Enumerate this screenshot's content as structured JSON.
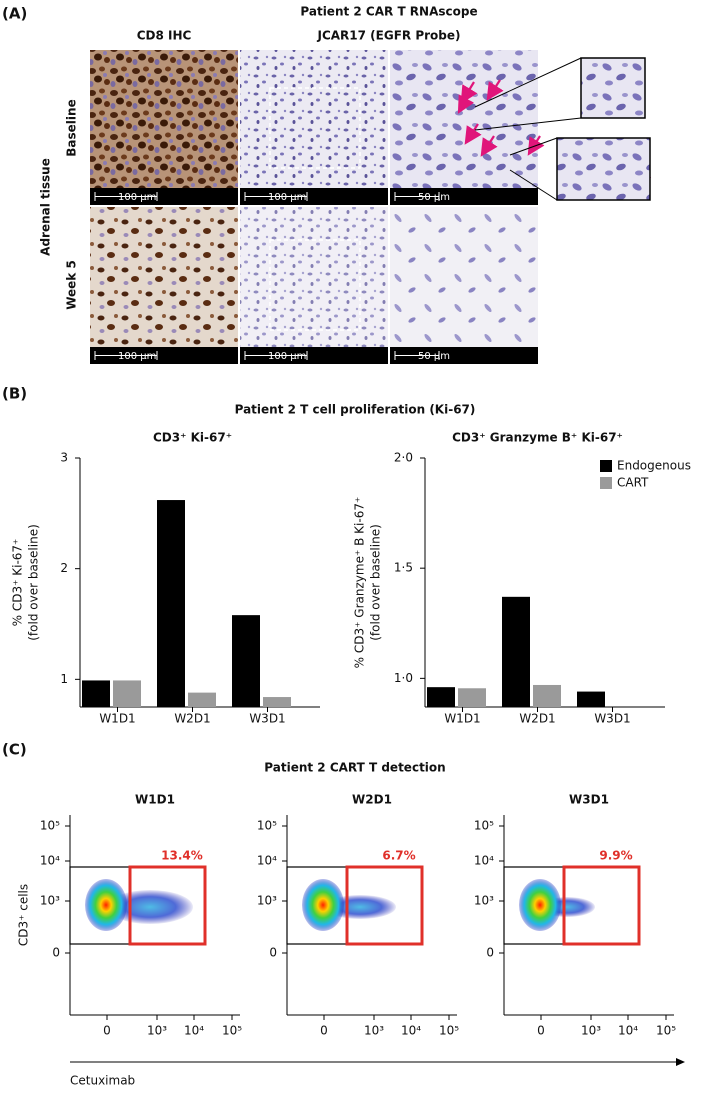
{
  "panel_a": {
    "label": "(A)",
    "title": "Patient 2 CAR T RNAscope",
    "column_headers": [
      "CD8 IHC",
      "JCAR17 (EGFR Probe)"
    ],
    "row_group_label": "Adrenal tissue",
    "rows": [
      "Baseline",
      "Week 5"
    ],
    "scale_bars": [
      [
        "100 µm",
        "100 µm",
        "50 µm"
      ],
      [
        "100 µm",
        "100 µm",
        "50 µm"
      ]
    ]
  },
  "panel_b": {
    "label": "(B)",
    "title": "Patient 2 T cell proliferation (Ki-67)"
  },
  "chart_data": [
    {
      "type": "bar",
      "title": "CD3⁺ Ki-67⁺",
      "y_label": [
        "% CD3⁺ Ki-67⁺",
        "(fold over baseline)"
      ],
      "categories": [
        "W1D1",
        "W2D1",
        "W3D1"
      ],
      "series": [
        {
          "color": "#000000",
          "values": [
            0.99,
            2.62,
            1.58
          ]
        },
        {
          "color": "#9a9a9a",
          "values": [
            0.99,
            0.88,
            0.84
          ]
        }
      ],
      "ylim": [
        0.75,
        3
      ],
      "yticks": [
        1,
        2,
        3
      ]
    },
    {
      "type": "bar",
      "title": "CD3⁺ Granzyme B⁺ Ki-67⁺",
      "y_label": [
        "% CD3⁺ Granzyme⁺ B Ki-67⁺",
        "(fold over baseline)"
      ],
      "categories": [
        "W1D1",
        "W2D1",
        "W3D1"
      ],
      "series": [
        {
          "name": "Endogenous",
          "color": "#000000",
          "values": [
            0.96,
            1.37,
            0.94
          ]
        },
        {
          "name": "CART",
          "color": "#9a9a9a",
          "values": [
            0.955,
            0.97,
            null
          ]
        }
      ],
      "ylim": [
        0.87,
        2.0
      ],
      "yticks": [
        {
          "value": 1.0,
          "label": "1·0"
        },
        {
          "value": 1.5,
          "label": "1·5"
        },
        {
          "value": 2.0,
          "label": "2·0"
        }
      ],
      "legend": "upper right"
    }
  ],
  "panel_c": {
    "label": "(C)",
    "title": "Patient 2 CART T detection",
    "y_label": "CD3⁺ cells",
    "x_label": "Cetuximab",
    "x_ticks": [
      "0",
      "10³",
      "10⁴",
      "10⁵"
    ],
    "y_ticks": [
      "10⁵",
      "10⁴",
      "10³",
      "0"
    ],
    "plots": [
      {
        "title": "W1D1",
        "gate_percent": "13.4%"
      },
      {
        "title": "W2D1",
        "gate_percent": "6.7%"
      },
      {
        "title": "W3D1",
        "gate_percent": "9.9%"
      }
    ]
  }
}
